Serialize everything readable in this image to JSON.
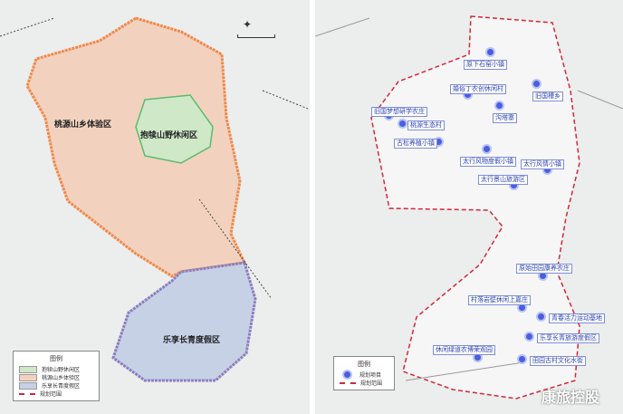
{
  "left_map": {
    "zones": [
      {
        "name": "桃源山乡体验区",
        "color": "#f2d2bf"
      },
      {
        "name": "抱犊山野休闲区",
        "color": "#cfe8c8"
      },
      {
        "name": "乐享长青度假区",
        "color": "#c7d1e6"
      }
    ],
    "legend": {
      "title": "图例",
      "items": [
        "抱犊山野休闲区",
        "桃源山乡体验区",
        "乐享长青度假区",
        "规划范围"
      ]
    }
  },
  "right_map": {
    "projects": [
      "原下石窑小镇",
      "婚俗丁农创休闲村",
      "旧国槽乡",
      "沟塔寨",
      "旧国梦想研学农庄",
      "桃源生态村",
      "古松养植小镇",
      "太行风物度假小镇",
      "太行风情小镇",
      "太行景山旅游区",
      "原始田园康养农庄",
      "村落岩壁休闲上嘉庄",
      "青春活力运动基地",
      "乐享长青旅游度假区",
      "休闲绿道农博荣观园",
      "田园古村文化水街"
    ],
    "legend": {
      "title": "图例",
      "items": [
        "规划项目",
        "规划范围"
      ]
    }
  },
  "boundary_color": "#d0293a",
  "project_color": "#4a5ee0",
  "watermark": "康旅控股"
}
